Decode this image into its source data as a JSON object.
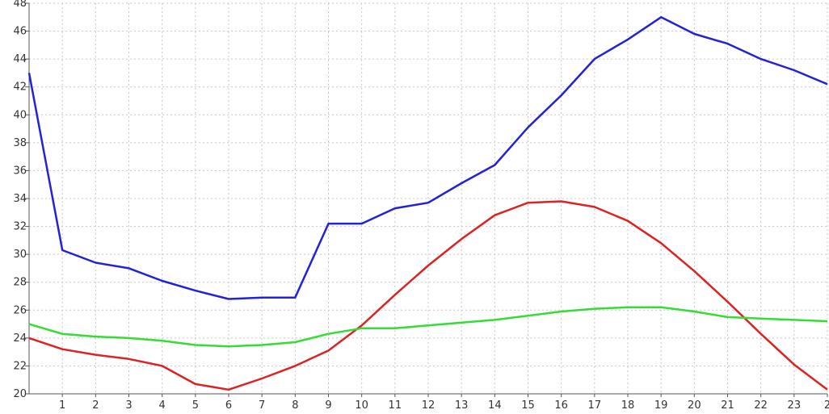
{
  "chart_data": {
    "type": "line",
    "x": [
      0,
      1,
      2,
      3,
      4,
      5,
      6,
      7,
      8,
      9,
      10,
      11,
      12,
      13,
      14,
      15,
      16,
      17,
      18,
      19,
      20,
      21,
      22,
      23,
      24
    ],
    "x_tick_labels": [
      "1",
      "2",
      "3",
      "4",
      "5",
      "6",
      "7",
      "8",
      "9",
      "10",
      "11",
      "12",
      "13",
      "14",
      "15",
      "16",
      "17",
      "18",
      "19",
      "20",
      "21",
      "22",
      "23",
      "2"
    ],
    "y_tick_labels": [
      "20",
      "22",
      "24",
      "26",
      "28",
      "30",
      "32",
      "34",
      "36",
      "38",
      "40",
      "42",
      "44",
      "46",
      "48"
    ],
    "xlim": [
      0,
      24
    ],
    "ylim": [
      20,
      48
    ],
    "grid": true,
    "series": [
      {
        "color": "#2222dd",
        "values": [
          43,
          30.3,
          29.4,
          29,
          28.1,
          27.4,
          26.8,
          26.9,
          26.9,
          32.2,
          32.2,
          33.3,
          33.7,
          35.1,
          36.4,
          39.1,
          41.4,
          44,
          45.4,
          47,
          45.8,
          45.1,
          44,
          43.2,
          42.2
        ]
      },
      {
        "color": "#dd2222",
        "values": [
          24,
          23.2,
          22.8,
          22.5,
          22,
          20.7,
          20.3,
          21.1,
          22,
          23.1,
          24.9,
          27.1,
          29.2,
          31.1,
          32.8,
          33.7,
          33.8,
          33.4,
          32.4,
          30.8,
          28.8,
          26.6,
          24.3,
          22.1,
          20.3
        ]
      },
      {
        "color": "#33dd33",
        "values": [
          25,
          24.3,
          24.1,
          24,
          23.8,
          23.5,
          23.4,
          23.5,
          23.7,
          24.3,
          24.7,
          24.7,
          24.9,
          25.1,
          25.3,
          25.6,
          25.9,
          26.1,
          26.2,
          26.2,
          25.9,
          25.5,
          25.4,
          25.3,
          25.2
        ]
      }
    ]
  }
}
